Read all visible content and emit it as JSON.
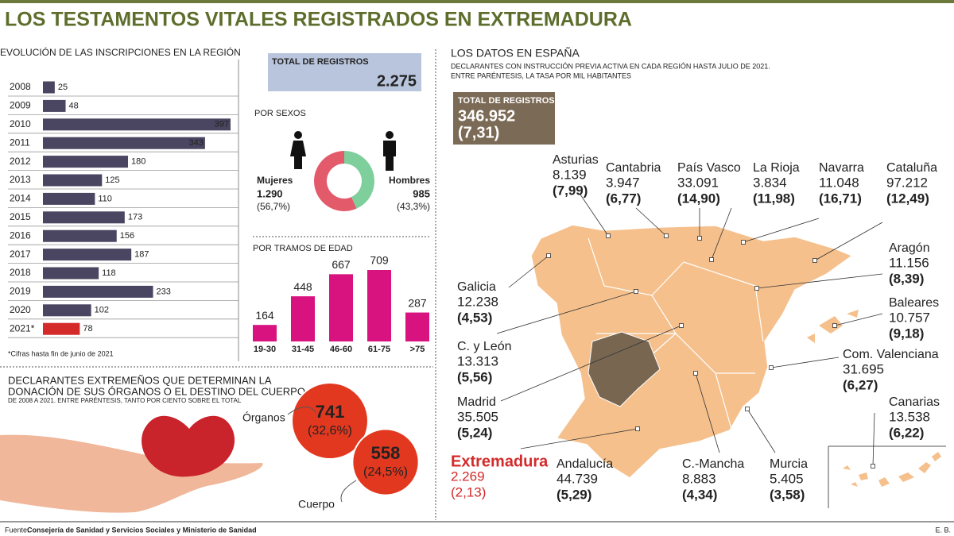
{
  "title": "LOS TESTAMENTOS VITALES REGISTRADOS EN EXTREMADURA",
  "total": {
    "label": "TOTAL DE REGISTROS",
    "value": 2275,
    "value_label": "2.275"
  },
  "spain_total": {
    "label": "TOTAL DE REGISTROS",
    "value": 346952,
    "value_label": "346.952",
    "rate": 7.31,
    "rate_label": "(7,31)"
  },
  "chart_data": [
    {
      "type": "hbar",
      "title": "EVOLUCIÓN DE LAS INSCRIPCIONES EN LA REGIÓN",
      "categories": [
        "2008",
        "2009",
        "2010",
        "2011",
        "2012",
        "2013",
        "2014",
        "2015",
        "2016",
        "2017",
        "2018",
        "2019",
        "2020",
        "2021*"
      ],
      "values": [
        25,
        48,
        397,
        343,
        180,
        125,
        110,
        173,
        156,
        187,
        118,
        233,
        102,
        78
      ],
      "colors": [
        "#4a4560",
        "#4a4560",
        "#4a4560",
        "#4a4560",
        "#4a4560",
        "#4a4560",
        "#4a4560",
        "#4a4560",
        "#4a4560",
        "#4a4560",
        "#4a4560",
        "#4a4560",
        "#4a4560",
        "#d42a2a"
      ],
      "note": "*Cifras hasta fin de junio de 2021"
    },
    {
      "type": "donut",
      "title": "POR SEXOS",
      "categories": [
        "Mujeres",
        "Hombres"
      ],
      "values": [
        1290,
        985
      ],
      "value_labels": [
        "1.290",
        "985"
      ],
      "percents": [
        56.7,
        43.3
      ],
      "percent_labels": [
        "(56,7%)",
        "(43,3%)"
      ],
      "colors": [
        "#e35a6b",
        "#7fcf9c"
      ]
    },
    {
      "type": "bar",
      "title": "POR TRAMOS DE EDAD",
      "categories": [
        "19-30",
        "31-45",
        "46-60",
        "61-75",
        ">75"
      ],
      "values": [
        164,
        448,
        667,
        709,
        287
      ],
      "color": "#d8137f"
    },
    {
      "type": "bubble",
      "title": "DECLARANTES EXTREMEÑOS QUE DETERMINAN LA",
      "title_line2": "DONACIÓN DE SUS ÓRGANOS O EL DESTINO DEL CUERPO",
      "subtitle": "DE 2008 A 2021. ENTRE PARÉNTESIS, TANTO POR CIENTO SOBRE EL TOTAL",
      "categories": [
        "Órganos",
        "Cuerpo"
      ],
      "values": [
        741,
        558
      ],
      "percents": [
        32.6,
        24.5
      ],
      "percent_labels": [
        "(32,6%)",
        "(24,5%)"
      ],
      "color": "#e2381f"
    },
    {
      "type": "map",
      "title": "LOS DATOS EN ESPAÑA",
      "subtitle": "DECLARANTES CON INSTRUCCIÓN PREVIA ACTIVA EN CADA REGIÓN HASTA JULIO DE 2021.",
      "note": "ENTRE PARÉNTESIS, LA TASA POR MIL HABITANTES",
      "categories": [
        "Asturias",
        "Cantabria",
        "País Vasco",
        "La Rioja",
        "Navarra",
        "Cataluña",
        "Aragón",
        "Galicia",
        "Baleares",
        "C. y León",
        "Com. Valenciana",
        "Madrid",
        "Canarias",
        "Extremadura",
        "Andalucía",
        "C.-Mancha",
        "Murcia"
      ],
      "values": [
        8139,
        3947,
        33091,
        3834,
        11048,
        97212,
        11156,
        12238,
        10757,
        13313,
        31695,
        35505,
        13538,
        2269,
        44739,
        8883,
        5405
      ],
      "value_labels": [
        "8.139",
        "3.947",
        "33.091",
        "3.834",
        "11.048",
        "97.212",
        "11.156",
        "12.238",
        "10.757",
        "13.313",
        "31.695",
        "35.505",
        "13.538",
        "2.269",
        "44.739",
        "8.883",
        "5.405"
      ],
      "rates": [
        7.99,
        6.77,
        14.9,
        11.98,
        16.71,
        12.49,
        8.39,
        4.53,
        9.18,
        5.56,
        6.27,
        5.24,
        6.22,
        2.13,
        5.29,
        4.34,
        3.58
      ],
      "rate_labels": [
        "(7,99)",
        "(6,77)",
        "(14,90)",
        "(11,98)",
        "(16,71)",
        "(12,49)",
        "(8,39)",
        "(4,53)",
        "(9,18)",
        "(5,56)",
        "(6,27)",
        "(5,24)",
        "(6,22)",
        "(2,13)",
        "(5,29)",
        "(4,34)",
        "(3,58)"
      ],
      "colors": [
        "#222",
        "#222",
        "#222",
        "#222",
        "#222",
        "#222",
        "#222",
        "#222",
        "#222",
        "#222",
        "#222",
        "#222",
        "#222",
        "#d42a2a",
        "#222",
        "#222",
        "#222"
      ]
    }
  ],
  "source": {
    "label": "Fuente:",
    "text": "Consejería de Sanidad y Servicios Sociales y Ministerio de Sanidad"
  },
  "credit": "E. B."
}
